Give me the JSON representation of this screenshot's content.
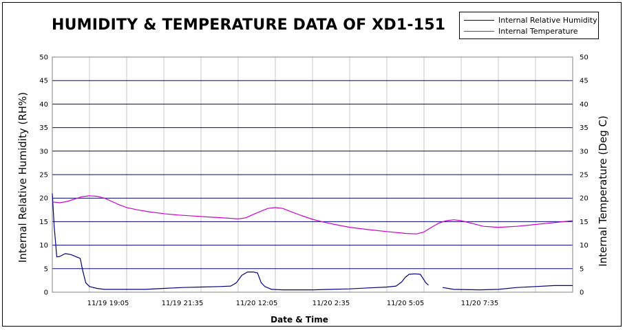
{
  "chart_data": {
    "type": "line",
    "title": "HUMIDITY & TEMPERATURE DATA OF XD1-151",
    "xlabel": "Date & Time",
    "ylabel_left": "Internal Relative Humidity (RH%)",
    "ylabel_right": "Internal Temperature (Deg C)",
    "ylim_left": [
      0,
      50
    ],
    "ylim_right": [
      0,
      50
    ],
    "y_ticks": [
      0,
      5,
      10,
      15,
      20,
      25,
      30,
      35,
      40,
      45,
      50
    ],
    "x_tick_labels": [
      "11/19 19:05",
      "11/19 21:35",
      "11/20 12:05",
      "11/20 2:35",
      "11/20 5:05",
      "11/20 7:35"
    ],
    "x_tick_positions": [
      1.5,
      3.5,
      5.5,
      7.5,
      9.5,
      11.5
    ],
    "x_range": [
      0,
      14
    ],
    "vertical_grid_count": 14,
    "grid": true,
    "legend_position": "top-right",
    "series": [
      {
        "name": "Internal Relative Humidity",
        "color": "#000080",
        "axis": "left",
        "points": [
          [
            0.0,
            21.0
          ],
          [
            0.05,
            14.0
          ],
          [
            0.12,
            7.5
          ],
          [
            0.2,
            7.6
          ],
          [
            0.35,
            8.2
          ],
          [
            0.5,
            8.0
          ],
          [
            0.65,
            7.5
          ],
          [
            0.75,
            7.2
          ],
          [
            0.82,
            4.5
          ],
          [
            0.9,
            2.0
          ],
          [
            1.0,
            1.2
          ],
          [
            1.2,
            0.8
          ],
          [
            1.4,
            0.6
          ],
          [
            2.0,
            0.6
          ],
          [
            2.5,
            0.6
          ],
          [
            3.0,
            0.8
          ],
          [
            3.5,
            1.0
          ],
          [
            4.0,
            1.1
          ],
          [
            4.5,
            1.2
          ],
          [
            4.8,
            1.3
          ],
          [
            4.95,
            2.0
          ],
          [
            5.1,
            3.6
          ],
          [
            5.25,
            4.3
          ],
          [
            5.4,
            4.3
          ],
          [
            5.52,
            4.1
          ],
          [
            5.62,
            2.0
          ],
          [
            5.72,
            1.2
          ],
          [
            5.9,
            0.6
          ],
          [
            6.2,
            0.5
          ],
          [
            7.0,
            0.5
          ],
          [
            7.5,
            0.6
          ],
          [
            8.0,
            0.7
          ],
          [
            8.5,
            0.9
          ],
          [
            9.0,
            1.1
          ],
          [
            9.25,
            1.3
          ],
          [
            9.4,
            2.2
          ],
          [
            9.5,
            3.2
          ],
          [
            9.6,
            3.8
          ],
          [
            9.75,
            3.9
          ],
          [
            9.9,
            3.8
          ],
          [
            10.05,
            2.0
          ],
          [
            10.12,
            1.5
          ],
          null,
          [
            10.5,
            1.0
          ],
          [
            10.8,
            0.6
          ],
          [
            11.5,
            0.5
          ],
          [
            12.0,
            0.6
          ],
          [
            12.5,
            1.0
          ],
          [
            13.0,
            1.2
          ],
          [
            13.5,
            1.4
          ],
          [
            14.0,
            1.4
          ]
        ]
      },
      {
        "name": "Internal Temperature",
        "color": "#cc00cc",
        "axis": "right",
        "points": [
          [
            0.0,
            19.2
          ],
          [
            0.2,
            19.0
          ],
          [
            0.4,
            19.3
          ],
          [
            0.6,
            19.8
          ],
          [
            0.8,
            20.3
          ],
          [
            1.0,
            20.5
          ],
          [
            1.2,
            20.4
          ],
          [
            1.4,
            20.0
          ],
          [
            1.6,
            19.3
          ],
          [
            1.8,
            18.6
          ],
          [
            2.0,
            18.0
          ],
          [
            2.3,
            17.5
          ],
          [
            2.6,
            17.1
          ],
          [
            3.0,
            16.7
          ],
          [
            3.4,
            16.4
          ],
          [
            3.8,
            16.2
          ],
          [
            4.2,
            16.0
          ],
          [
            4.6,
            15.8
          ],
          [
            5.0,
            15.6
          ],
          [
            5.2,
            15.8
          ],
          [
            5.4,
            16.5
          ],
          [
            5.6,
            17.2
          ],
          [
            5.8,
            17.8
          ],
          [
            6.0,
            18.0
          ],
          [
            6.2,
            17.8
          ],
          [
            6.4,
            17.2
          ],
          [
            6.7,
            16.3
          ],
          [
            7.0,
            15.5
          ],
          [
            7.3,
            14.9
          ],
          [
            7.6,
            14.4
          ],
          [
            8.0,
            13.8
          ],
          [
            8.5,
            13.3
          ],
          [
            9.0,
            12.9
          ],
          [
            9.5,
            12.5
          ],
          [
            9.8,
            12.4
          ],
          [
            10.0,
            12.8
          ],
          [
            10.2,
            13.8
          ],
          [
            10.4,
            14.7
          ],
          [
            10.6,
            15.2
          ],
          [
            10.8,
            15.4
          ],
          [
            11.0,
            15.2
          ],
          [
            11.3,
            14.6
          ],
          [
            11.6,
            14.0
          ],
          [
            12.0,
            13.8
          ],
          [
            12.5,
            14.0
          ],
          [
            13.0,
            14.4
          ],
          [
            13.5,
            14.8
          ],
          [
            14.0,
            15.2
          ]
        ]
      }
    ]
  },
  "legend": {
    "items": [
      {
        "label": "Internal Relative Humidity",
        "color": "#000080"
      },
      {
        "label": "Internal Temperature",
        "color": "#cc00cc"
      }
    ]
  }
}
